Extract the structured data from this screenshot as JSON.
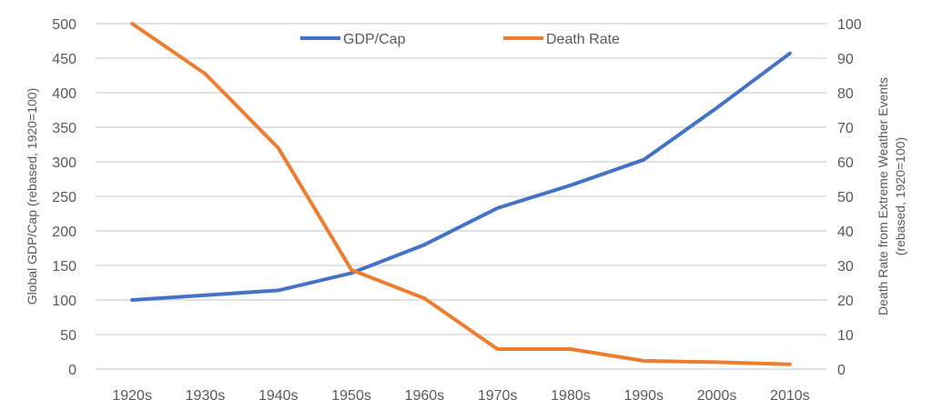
{
  "chart_data": {
    "type": "line",
    "title": "",
    "categories": [
      "1920s",
      "1930s",
      "1940s",
      "1950s",
      "1960s",
      "1970s",
      "1980s",
      "1990s",
      "2000s",
      "2010s"
    ],
    "series": [
      {
        "name": "GDP/Cap",
        "axis": "left",
        "color": "#4472C4",
        "values": [
          100,
          107,
          114,
          139,
          180,
          233,
          266,
          303,
          378,
          457
        ]
      },
      {
        "name": "Death Rate",
        "axis": "right",
        "color": "#ED7D31",
        "values": [
          100,
          85.5,
          64,
          28.7,
          20.5,
          5.8,
          5.8,
          2.4,
          2.0,
          1.4
        ]
      }
    ],
    "ylabel": "Global GDP/Cap (rebased, 1920=100)",
    "ylabel_right_line1": "Death Rate from Extreme Weather Events",
    "ylabel_right_line2": "(rebased, 1920=100)",
    "xlabel": "",
    "ylim": [
      0,
      500
    ],
    "ylim_right": [
      0,
      100
    ],
    "yticks": [
      0,
      50,
      100,
      150,
      200,
      250,
      300,
      350,
      400,
      450,
      500
    ],
    "yticks_right": [
      0,
      10,
      20,
      30,
      40,
      50,
      60,
      70,
      80,
      90,
      100
    ],
    "grid": true,
    "legend": {
      "placement": "top-center",
      "entries": [
        "GDP/Cap",
        "Death Rate"
      ]
    }
  }
}
